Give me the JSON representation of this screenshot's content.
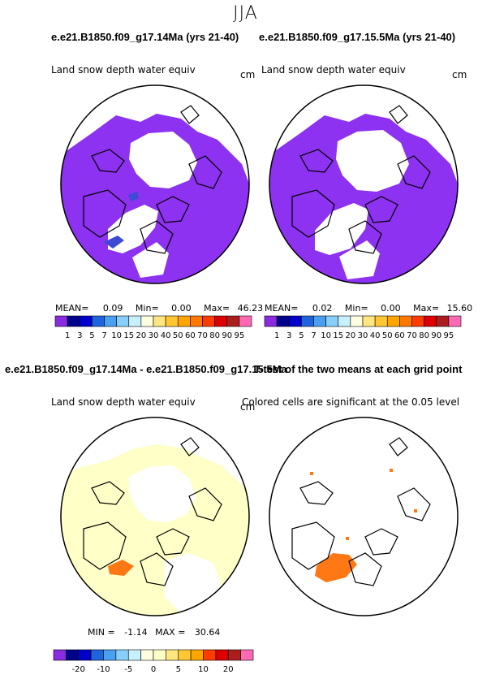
{
  "title": "JJA",
  "top_left": {
    "case_title": "e.e21.B1850.f09_g17.14Ma (yrs 21-40)",
    "var_label": "Land snow depth water equiv",
    "units": "cm",
    "stats": {
      "mean_label": "MEAN=",
      "mean": "0.09",
      "min_label": "Min=",
      "min": "0.00",
      "max_label": "Max=",
      "max": "46.23"
    }
  },
  "top_right": {
    "case_title": "e.e21.B1850.f09_g17.15.5Ma (yrs 21-40)",
    "var_label": "Land snow depth water equiv",
    "units": "cm",
    "stats": {
      "mean_label": "MEAN=",
      "mean": "0.02",
      "min_label": "Min=",
      "min": "0.00",
      "max_label": "Max=",
      "max": "15.60"
    }
  },
  "top_colorbar": {
    "colors": [
      "#8a2be2",
      "#00008b",
      "#0000cd",
      "#1e64dc",
      "#4aa0f0",
      "#87cefa",
      "#c8f0ff",
      "#ffffe0",
      "#ffe680",
      "#ffc832",
      "#ffa500",
      "#ff7800",
      "#ff3c00",
      "#dc0000",
      "#aa1e1e",
      "#ff69b4"
    ],
    "labels": [
      "1",
      "3",
      "5",
      "7",
      "10",
      "15",
      "20",
      "30",
      "40",
      "50",
      "60",
      "70",
      "80",
      "90",
      "95"
    ]
  },
  "diff_title": "e.e21.B1850.f09_g17.14Ma - e.e21.B1850.f09_g17.15.5Ma",
  "ttest_title": "T-test of the two means at each grid point",
  "bottom_left": {
    "var_label": "Land snow depth water equiv",
    "units": "cm",
    "stats": {
      "min_label": "MIN =",
      "min": "-1.14",
      "max_label": "MAX =",
      "max": "30.64"
    }
  },
  "bottom_right": {
    "note": "Colored cells are significant at the 0.05 level"
  },
  "bottom_colorbar": {
    "colors": [
      "#8a2be2",
      "#00008b",
      "#0000cd",
      "#1e64dc",
      "#4aa0f0",
      "#87cefa",
      "#c8f0ff",
      "#ffffe0",
      "#ffffc8",
      "#ffe680",
      "#ffc832",
      "#ffa500",
      "#ff3c00",
      "#dc0000",
      "#aa1e1e",
      "#ff69b4"
    ],
    "labels": [
      "-20",
      "-10",
      "-5",
      "0",
      "5",
      "10",
      "20"
    ]
  },
  "colors": {
    "snow": "#8c32f0",
    "snow_dark": "#3c4bd2",
    "diff_fill": "#ffffc8",
    "signif": "#ff7814"
  }
}
